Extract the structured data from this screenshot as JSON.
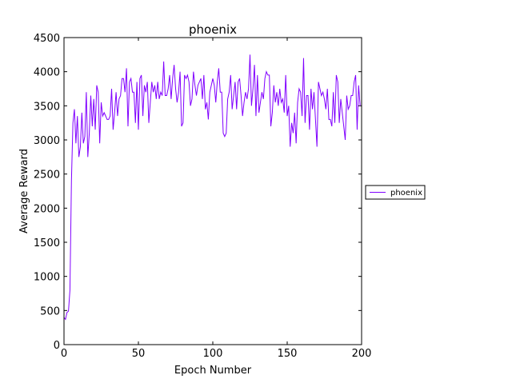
{
  "chart_data": {
    "type": "line",
    "title": "phoenix",
    "x_label": "Epoch Number",
    "y_label": "Average Reward",
    "xlim": [
      0,
      200
    ],
    "xticks": [
      0,
      50,
      100,
      150,
      200
    ],
    "ylim": [
      0,
      4500
    ],
    "yticks": [
      0,
      500,
      1000,
      1500,
      2000,
      2500,
      3000,
      3500,
      4000,
      4500
    ],
    "grid": false,
    "legend": "right",
    "x": [
      0,
      1,
      2,
      3,
      4,
      5,
      6,
      7,
      8,
      9,
      10,
      11,
      12,
      13,
      14,
      15,
      16,
      17,
      18,
      19,
      20,
      21,
      22,
      23,
      24,
      25,
      26,
      27,
      28,
      29,
      30,
      31,
      32,
      33,
      34,
      35,
      36,
      37,
      38,
      39,
      40,
      41,
      42,
      43,
      44,
      45,
      46,
      47,
      48,
      49,
      50,
      51,
      52,
      53,
      54,
      55,
      56,
      57,
      58,
      59,
      60,
      61,
      62,
      63,
      64,
      65,
      66,
      67,
      68,
      69,
      70,
      71,
      72,
      73,
      74,
      75,
      76,
      77,
      78,
      79,
      80,
      81,
      82,
      83,
      84,
      85,
      86,
      87,
      88,
      89,
      90,
      91,
      92,
      93,
      94,
      95,
      96,
      97,
      98,
      99,
      100,
      101,
      102,
      103,
      104,
      105,
      106,
      107,
      108,
      109,
      110,
      111,
      112,
      113,
      114,
      115,
      116,
      117,
      118,
      119,
      120,
      121,
      122,
      123,
      124,
      125,
      126,
      127,
      128,
      129,
      130,
      131,
      132,
      133,
      134,
      135,
      136,
      137,
      138,
      139,
      140,
      141,
      142,
      143,
      144,
      145,
      146,
      147,
      148,
      149,
      150,
      151,
      152,
      153,
      154,
      155,
      156,
      157,
      158,
      159,
      160,
      161,
      162,
      163,
      164,
      165,
      166,
      167,
      168,
      169,
      170,
      171,
      172,
      173,
      174,
      175,
      176,
      177,
      178,
      179,
      180,
      181,
      182,
      183,
      184,
      185,
      186,
      187,
      188,
      189,
      190,
      191,
      192,
      193,
      194,
      195,
      196,
      197,
      198,
      199
    ],
    "series": [
      {
        "name": "phoenix",
        "color": "#8000ff",
        "values": [
          400,
          370,
          470,
          490,
          800,
          2400,
          3250,
          3450,
          2950,
          3350,
          2750,
          2900,
          3400,
          2950,
          3050,
          3700,
          2750,
          3100,
          3650,
          3200,
          3600,
          3150,
          3800,
          3700,
          2950,
          3550,
          3350,
          3400,
          3350,
          3300,
          3300,
          3350,
          3750,
          3150,
          3400,
          3700,
          3350,
          3600,
          3650,
          3900,
          3900,
          3700,
          4050,
          3200,
          3850,
          3900,
          3700,
          3700,
          3250,
          3850,
          3150,
          3900,
          3950,
          3350,
          3800,
          3700,
          3850,
          3250,
          3550,
          3850,
          3700,
          3800,
          3600,
          3850,
          3600,
          3700,
          3650,
          4150,
          3650,
          3650,
          3750,
          3950,
          3600,
          3900,
          4100,
          3750,
          3550,
          3700,
          4000,
          3200,
          3250,
          3950,
          3900,
          3950,
          3850,
          3500,
          3600,
          4000,
          3800,
          3650,
          3800,
          3850,
          3900,
          3600,
          3950,
          3450,
          3550,
          3300,
          3700,
          3800,
          3900,
          3800,
          3550,
          3850,
          4050,
          3700,
          3700,
          3100,
          3050,
          3100,
          3600,
          3700,
          3950,
          3450,
          3650,
          3850,
          3450,
          3850,
          3900,
          3650,
          3350,
          3550,
          3700,
          3600,
          3750,
          4250,
          3500,
          3750,
          4100,
          3350,
          3950,
          3400,
          3550,
          3700,
          3600,
          3900,
          4000,
          3950,
          3950,
          3200,
          3400,
          3800,
          3550,
          3700,
          3500,
          3750,
          3550,
          3600,
          3400,
          3950,
          3350,
          3500,
          2900,
          3250,
          3100,
          3400,
          2950,
          3550,
          3750,
          3700,
          3350,
          4200,
          3250,
          3650,
          3650,
          3150,
          3750,
          3450,
          3700,
          3300,
          2900,
          3850,
          3750,
          3650,
          3700,
          3600,
          3450,
          3750,
          3300,
          3300,
          3200,
          3700,
          3250,
          3950,
          3850,
          3250,
          3600,
          3400,
          3200,
          3000,
          3650,
          3450,
          3500,
          3650,
          3650,
          3850,
          3950,
          3150,
          3800,
          3500
        ]
      }
    ]
  }
}
